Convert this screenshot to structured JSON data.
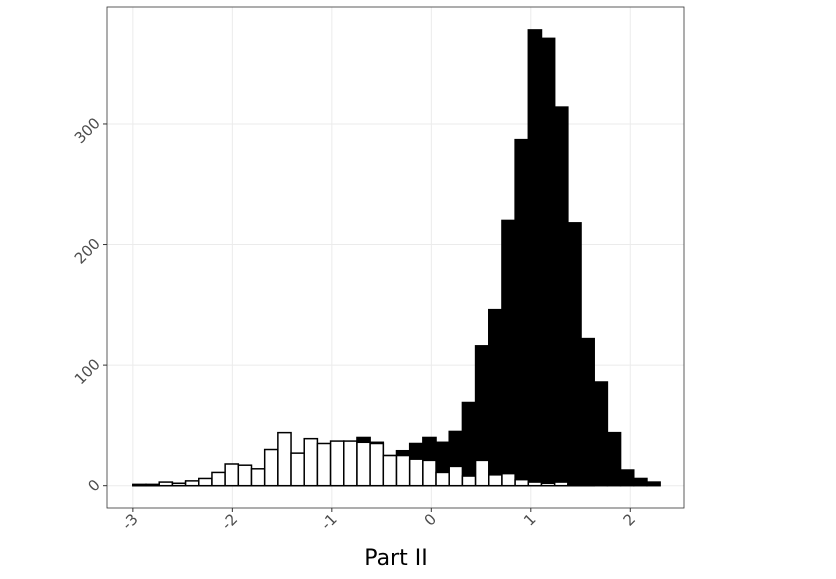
{
  "chart_data": {
    "type": "histogram",
    "x_label": "Part II",
    "bins": [
      -3,
      -2.8675,
      -2.735,
      -2.6025,
      -2.47,
      -2.3375,
      -2.205,
      -2.0725,
      -1.94,
      -1.8075,
      -1.675,
      -1.5425,
      -1.41,
      -1.2775,
      -1.145,
      -1.0125,
      -0.88,
      -0.7475,
      -0.615,
      -0.4825,
      -0.35,
      -0.2175,
      -0.085,
      0.0475,
      0.18,
      0.3125,
      0.445,
      0.5775,
      0.71,
      0.8425,
      0.975,
      1.1075,
      1.24,
      1.3725,
      1.505,
      1.6375,
      1.77,
      1.9025,
      2.035,
      2.1675,
      2.3
    ],
    "series": [
      {
        "color": "#000000",
        "values": [
          1,
          1,
          2,
          2,
          3,
          4,
          5,
          7,
          8,
          9,
          10,
          11,
          12,
          13,
          15,
          17,
          20,
          40,
          36,
          25,
          29,
          35,
          40,
          36,
          45,
          69,
          116,
          146,
          220,
          287,
          378,
          371,
          314,
          218,
          122,
          86,
          44,
          13,
          6,
          3
        ]
      },
      {
        "color": "#ffffff",
        "values": [
          1,
          1,
          3,
          2,
          4,
          6,
          11,
          18,
          17,
          14,
          30,
          44,
          27,
          39,
          35,
          37,
          37,
          36,
          35,
          25,
          25,
          22,
          21,
          11,
          16,
          8,
          21,
          9,
          10,
          5,
          3,
          2,
          3,
          1,
          1,
          0,
          0,
          0,
          0,
          0
        ]
      }
    ],
    "xlim": [
      -3.26,
      2.54
    ],
    "xticks": [
      -3,
      -2,
      -1,
      0,
      1,
      2
    ],
    "ylim": [
      -18.5,
      397
    ],
    "yticks": [
      0,
      100,
      200,
      300
    ],
    "grid": true
  }
}
